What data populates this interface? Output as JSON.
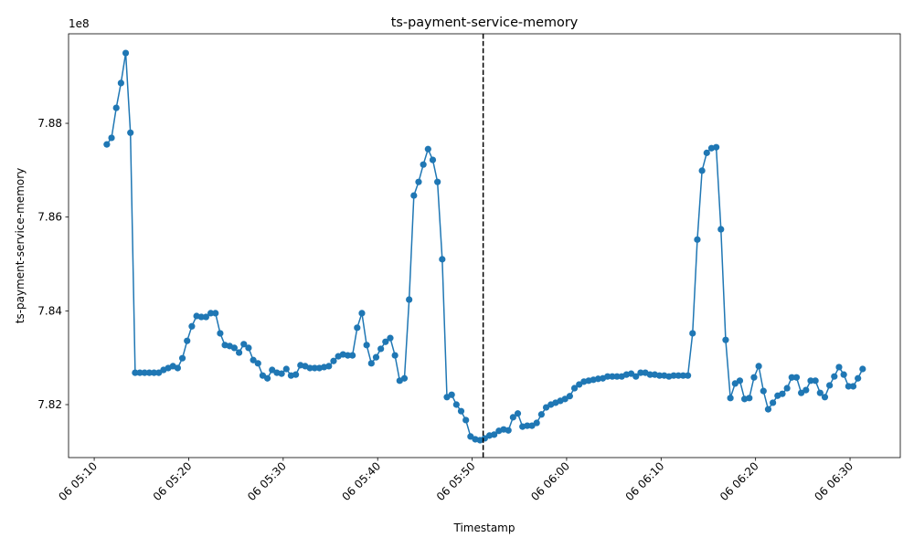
{
  "chart_data": {
    "type": "line",
    "title": "ts-payment-service-memory",
    "xlabel": "Timestamp",
    "ylabel": "ts-payment-service-memory",
    "y_offset_text": "1e8",
    "color": "#1f77b4",
    "marker": "o",
    "vline": {
      "x": "06 05:51:10",
      "color": "#000000",
      "style": "dashed"
    },
    "xlim": [
      "06 05:07:17",
      "06 06:35:19"
    ],
    "xticks": [
      "06 05:10",
      "06 05:20",
      "06 05:30",
      "06 05:40",
      "06 05:50",
      "06 06:00",
      "06 06:10",
      "06 06:20",
      "06 06:30"
    ],
    "ylim": [
      7.8087,
      7.8991
    ],
    "yticks": [
      7.82,
      7.84,
      7.86,
      7.88
    ],
    "x": [
      "06 05:11:20",
      "06 05:11:50",
      "06 05:12:20",
      "06 05:12:50",
      "06 05:13:20",
      "06 05:13:50",
      "06 05:14:20",
      "06 05:14:50",
      "06 05:15:20",
      "06 05:15:50",
      "06 05:16:20",
      "06 05:16:50",
      "06 05:17:20",
      "06 05:17:50",
      "06 05:18:20",
      "06 05:18:50",
      "06 05:19:20",
      "06 05:19:50",
      "06 05:20:20",
      "06 05:20:50",
      "06 05:21:20",
      "06 05:21:50",
      "06 05:22:20",
      "06 05:22:50",
      "06 05:23:20",
      "06 05:23:50",
      "06 05:24:20",
      "06 05:24:50",
      "06 05:25:20",
      "06 05:25:50",
      "06 05:26:20",
      "06 05:26:50",
      "06 05:27:20",
      "06 05:27:50",
      "06 05:28:20",
      "06 05:28:50",
      "06 05:29:20",
      "06 05:29:50",
      "06 05:30:20",
      "06 05:30:50",
      "06 05:31:20",
      "06 05:31:50",
      "06 05:32:20",
      "06 05:32:50",
      "06 05:33:20",
      "06 05:33:50",
      "06 05:34:20",
      "06 05:34:50",
      "06 05:35:20",
      "06 05:35:50",
      "06 05:36:20",
      "06 05:36:50",
      "06 05:37:20",
      "06 05:37:50",
      "06 05:38:20",
      "06 05:38:50",
      "06 05:39:20",
      "06 05:39:50",
      "06 05:40:20",
      "06 05:40:50",
      "06 05:41:20",
      "06 05:41:50",
      "06 05:42:20",
      "06 05:42:50",
      "06 05:43:20",
      "06 05:43:50",
      "06 05:44:20",
      "06 05:44:50",
      "06 05:45:20",
      "06 05:45:50",
      "06 05:46:20",
      "06 05:46:50",
      "06 05:47:20",
      "06 05:47:50",
      "06 05:48:20",
      "06 05:48:50",
      "06 05:49:20",
      "06 05:49:50",
      "06 05:50:20",
      "06 05:50:50",
      "06 05:51:20",
      "06 05:51:50",
      "06 05:52:20",
      "06 05:52:50",
      "06 05:53:20",
      "06 05:53:50",
      "06 05:54:20",
      "06 05:54:50",
      "06 05:55:20",
      "06 05:55:50",
      "06 05:56:20",
      "06 05:56:50",
      "06 05:57:20",
      "06 05:57:50",
      "06 05:58:20",
      "06 05:58:50",
      "06 05:59:20",
      "06 05:59:50",
      "06 06:00:20",
      "06 06:00:50",
      "06 06:01:20",
      "06 06:01:50",
      "06 06:02:20",
      "06 06:02:50",
      "06 06:03:20",
      "06 06:03:50",
      "06 06:04:20",
      "06 06:04:50",
      "06 06:05:20",
      "06 06:05:50",
      "06 06:06:20",
      "06 06:06:50",
      "06 06:07:20",
      "06 06:07:50",
      "06 06:08:20",
      "06 06:08:50",
      "06 06:09:20",
      "06 06:09:50",
      "06 06:10:20",
      "06 06:10:50",
      "06 06:11:20",
      "06 06:11:50",
      "06 06:12:20",
      "06 06:12:50",
      "06 06:13:20",
      "06 06:13:50",
      "06 06:14:20",
      "06 06:14:50",
      "06 06:15:20",
      "06 06:15:50",
      "06 06:16:20",
      "06 06:16:50",
      "06 06:17:20",
      "06 06:17:50",
      "06 06:18:20",
      "06 06:18:50",
      "06 06:19:20",
      "06 06:19:50",
      "06 06:20:20",
      "06 06:20:50",
      "06 06:21:20",
      "06 06:21:50",
      "06 06:22:20",
      "06 06:22:50",
      "06 06:23:20",
      "06 06:23:50",
      "06 06:24:20",
      "06 06:24:50",
      "06 06:25:20",
      "06 06:25:50",
      "06 06:26:20",
      "06 06:26:50",
      "06 06:27:20",
      "06 06:27:50",
      "06 06:28:20",
      "06 06:28:50",
      "06 06:29:20",
      "06 06:29:50",
      "06 06:30:20",
      "06 06:30:50",
      "06 06:31:20"
    ],
    "values": [
      7.8755,
      7.8769,
      7.8833,
      7.8886,
      7.895,
      7.878,
      7.8268,
      7.8268,
      7.8268,
      7.8268,
      7.8268,
      7.8268,
      7.8274,
      7.8278,
      7.8282,
      7.8278,
      7.8299,
      7.8336,
      7.8367,
      7.8389,
      7.8387,
      7.8387,
      7.8395,
      7.8395,
      7.8352,
      7.8327,
      7.8325,
      7.8321,
      7.8311,
      7.8329,
      7.8321,
      7.8295,
      7.8288,
      7.8262,
      7.8256,
      7.8274,
      7.8268,
      7.8266,
      7.8276,
      7.8262,
      7.8264,
      7.8284,
      7.8282,
      7.8278,
      7.8278,
      7.8278,
      7.828,
      7.8282,
      7.8293,
      7.8303,
      7.8307,
      7.8305,
      7.8305,
      7.8364,
      7.8395,
      7.8327,
      7.8288,
      7.8301,
      7.8319,
      7.8334,
      7.8342,
      7.8305,
      7.8251,
      7.8256,
      7.8424,
      7.8646,
      7.8675,
      7.8712,
      7.8745,
      7.8722,
      7.8675,
      7.851,
      7.8216,
      7.8221,
      7.82,
      7.8186,
      7.8167,
      7.8132,
      7.8126,
      7.8124,
      7.8128,
      7.8134,
      7.8136,
      7.8144,
      7.8147,
      7.8145,
      7.8173,
      7.8181,
      7.8153,
      7.8155,
      7.8155,
      7.8161,
      7.8179,
      7.8194,
      7.82,
      7.8204,
      7.8208,
      7.8212,
      7.8218,
      7.8235,
      7.8243,
      7.8249,
      7.8251,
      7.8253,
      7.8255,
      7.8256,
      7.826,
      7.826,
      7.826,
      7.826,
      7.8264,
      7.8266,
      7.826,
      7.8268,
      7.8268,
      7.8264,
      7.8264,
      7.8262,
      7.8262,
      7.826,
      7.8262,
      7.8262,
      7.8262,
      7.8262,
      7.8352,
      7.8552,
      7.8699,
      7.8737,
      7.8747,
      7.8749,
      7.8574,
      7.8338,
      7.8214,
      7.8245,
      7.8251,
      7.8212,
      7.8214,
      7.8258,
      7.8282,
      7.8229,
      7.819,
      7.8204,
      7.8219,
      7.8223,
      7.8235,
      7.8258,
      7.8258,
      7.8225,
      7.8231,
      7.8251,
      7.8251,
      7.8225,
      7.8216,
      7.8241,
      7.826,
      7.828,
      7.8264,
      7.8239,
      7.8239,
      7.8256,
      7.8276
    ]
  }
}
